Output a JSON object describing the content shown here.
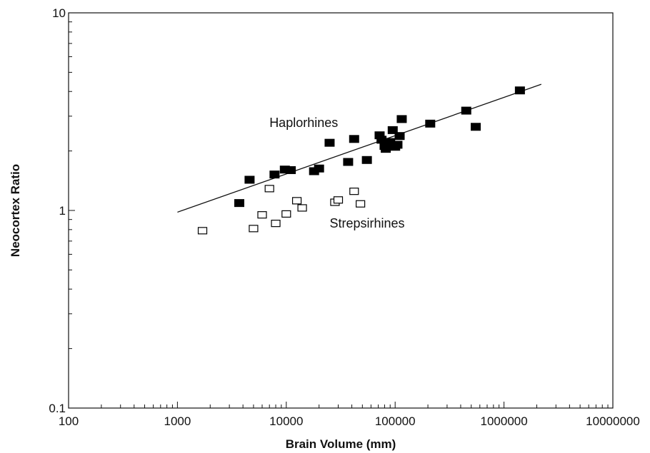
{
  "chart_data": {
    "type": "scatter",
    "xlabel": "Brain Volume (mm)",
    "ylabel": "Neocortex Ratio",
    "x_scale": "log",
    "y_scale": "log",
    "xlim": [
      100,
      10000000
    ],
    "ylim": [
      0.1,
      10
    ],
    "x_ticks": [
      "100",
      "1000",
      "10000",
      "100000",
      "1000000",
      "10000000"
    ],
    "y_ticks": [
      "10",
      "1",
      "0.1"
    ],
    "grid": false,
    "annotations": [
      {
        "text": "Haplorhines",
        "x": 7000,
        "y": 2.65
      },
      {
        "text": "Strepsirhines",
        "x": 25000,
        "y": 0.82
      }
    ],
    "series": [
      {
        "marker": "filled-square",
        "color": "#000000",
        "points": [
          [
            3700,
            1.09
          ],
          [
            4600,
            1.43
          ],
          [
            7800,
            1.52
          ],
          [
            9700,
            1.61
          ],
          [
            11000,
            1.6
          ],
          [
            18000,
            1.58
          ],
          [
            20000,
            1.63
          ],
          [
            25000,
            2.2
          ],
          [
            37000,
            1.76
          ],
          [
            42000,
            2.3
          ],
          [
            55000,
            1.8
          ],
          [
            72000,
            2.4
          ],
          [
            75000,
            2.28
          ],
          [
            80000,
            2.12
          ],
          [
            82000,
            2.05
          ],
          [
            90000,
            2.22
          ],
          [
            95000,
            2.55
          ],
          [
            100000,
            2.1
          ],
          [
            105000,
            2.15
          ],
          [
            110000,
            2.38
          ],
          [
            115000,
            2.9
          ],
          [
            210000,
            2.75
          ],
          [
            450000,
            3.2
          ],
          [
            550000,
            2.65
          ],
          [
            1400000,
            4.05
          ]
        ]
      },
      {
        "marker": "open-square",
        "color": "#000000",
        "points": [
          [
            1700,
            0.79
          ],
          [
            5000,
            0.81
          ],
          [
            6000,
            0.95
          ],
          [
            7000,
            1.29
          ],
          [
            8000,
            0.86
          ],
          [
            10000,
            0.96
          ],
          [
            12500,
            1.12
          ],
          [
            14000,
            1.03
          ],
          [
            28000,
            1.1
          ],
          [
            30000,
            1.13
          ],
          [
            42000,
            1.25
          ],
          [
            48000,
            1.08
          ]
        ]
      }
    ],
    "trendline": {
      "x": [
        1000,
        2200000
      ],
      "y": [
        0.98,
        4.35
      ]
    }
  }
}
